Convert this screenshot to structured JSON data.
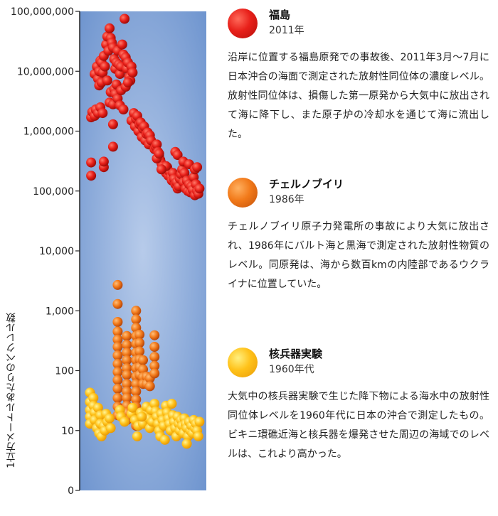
{
  "chart_data": {
    "type": "scatter",
    "ylabel": "1立方メートルあたりのベクレル数",
    "yscale": "log",
    "y_ticks": [
      "100,000,000",
      "10,000,000",
      "1,000,000",
      "100,000",
      "10,000",
      "1,000",
      "100",
      "10",
      "0"
    ],
    "series": [
      {
        "name": "福島",
        "year": "2011年",
        "color": "#e8201a",
        "description": "沿岸に位置する福島原発での事故後、2011年3月〜7月に日本沖合の海面で測定された放射性同位体の濃度レベル。放射性同位体は、損傷した第一原発から大気中に放出されて海に降下し、また原子炉の冷却水を通じて海に流出した。",
        "points": [
          [
            0.05,
            1700000
          ],
          [
            0.06,
            2100000
          ],
          [
            0.08,
            1800000
          ],
          [
            0.09,
            2300000
          ],
          [
            0.11,
            2000000
          ],
          [
            0.13,
            2500000
          ],
          [
            0.15,
            2000000
          ],
          [
            0.05,
            180000
          ],
          [
            0.05,
            300000
          ],
          [
            0.16,
            250000
          ],
          [
            0.16,
            310000
          ],
          [
            0.08,
            9000000
          ],
          [
            0.1,
            12000000
          ],
          [
            0.11,
            7500000
          ],
          [
            0.12,
            10000000
          ],
          [
            0.13,
            15000000
          ],
          [
            0.14,
            14000000
          ],
          [
            0.15,
            9500000
          ],
          [
            0.16,
            18000000
          ],
          [
            0.17,
            12000000
          ],
          [
            0.18,
            28000000
          ],
          [
            0.19,
            38000000
          ],
          [
            0.2,
            22000000
          ],
          [
            0.21,
            52000000
          ],
          [
            0.22,
            36000000
          ],
          [
            0.23,
            30000000
          ],
          [
            0.24,
            25000000
          ],
          [
            0.25,
            16000000
          ],
          [
            0.26,
            11000000
          ],
          [
            0.27,
            14000000
          ],
          [
            0.28,
            22000000
          ],
          [
            0.29,
            13000000
          ],
          [
            0.3,
            9000000
          ],
          [
            0.31,
            12000000
          ],
          [
            0.32,
            28000000
          ],
          [
            0.33,
            19000000
          ],
          [
            0.34,
            75000000
          ],
          [
            0.35,
            17000000
          ],
          [
            0.36,
            11000000
          ],
          [
            0.37,
            14000000
          ],
          [
            0.38,
            8000000
          ],
          [
            0.39,
            7000000
          ],
          [
            0.4,
            12000000
          ],
          [
            0.41,
            9500000
          ],
          [
            0.12,
            5800000
          ],
          [
            0.14,
            6500000
          ],
          [
            0.19,
            7000000
          ],
          [
            0.21,
            3000000
          ],
          [
            0.22,
            4500000
          ],
          [
            0.24,
            2800000
          ],
          [
            0.25,
            5000000
          ],
          [
            0.26,
            4200000
          ],
          [
            0.27,
            6000000
          ],
          [
            0.28,
            3500000
          ],
          [
            0.3,
            2700000
          ],
          [
            0.31,
            4800000
          ],
          [
            0.33,
            2300000
          ],
          [
            0.35,
            5500000
          ],
          [
            0.37,
            6500000
          ],
          [
            0.24,
            1300000
          ],
          [
            0.24,
            550000
          ],
          [
            0.4,
            1500000
          ],
          [
            0.42,
            2000000
          ],
          [
            0.43,
            1200000
          ],
          [
            0.44,
            1600000
          ],
          [
            0.45,
            1800000
          ],
          [
            0.46,
            1000000
          ],
          [
            0.47,
            1300000
          ],
          [
            0.48,
            1400000
          ],
          [
            0.49,
            800000
          ],
          [
            0.5,
            1100000
          ],
          [
            0.51,
            1200000
          ],
          [
            0.52,
            700000
          ],
          [
            0.53,
            900000
          ],
          [
            0.54,
            950000
          ],
          [
            0.55,
            600000
          ],
          [
            0.56,
            850000
          ],
          [
            0.57,
            700000
          ],
          [
            0.6,
            500000
          ],
          [
            0.61,
            550000
          ],
          [
            0.62,
            600000
          ],
          [
            0.63,
            450000
          ],
          [
            0.64,
            380000
          ],
          [
            0.65,
            330000
          ],
          [
            0.66,
            290000
          ],
          [
            0.67,
            260000
          ],
          [
            0.68,
            230000
          ],
          [
            0.69,
            220000
          ],
          [
            0.7,
            200000
          ],
          [
            0.71,
            250000
          ],
          [
            0.72,
            180000
          ],
          [
            0.73,
            210000
          ],
          [
            0.74,
            170000
          ],
          [
            0.75,
            150000
          ],
          [
            0.76,
            200000
          ],
          [
            0.77,
            160000
          ],
          [
            0.78,
            130000
          ],
          [
            0.79,
            140000
          ],
          [
            0.8,
            110000
          ],
          [
            0.81,
            120000
          ],
          [
            0.82,
            160000
          ],
          [
            0.83,
            190000
          ],
          [
            0.84,
            230000
          ],
          [
            0.85,
            140000
          ],
          [
            0.86,
            200000
          ],
          [
            0.87,
            110000
          ],
          [
            0.88,
            150000
          ],
          [
            0.89,
            100000
          ],
          [
            0.9,
            130000
          ],
          [
            0.91,
            95000
          ],
          [
            0.92,
            120000
          ],
          [
            0.93,
            105000
          ],
          [
            0.94,
            170000
          ],
          [
            0.95,
            85000
          ],
          [
            0.96,
            130000
          ],
          [
            0.97,
            100000
          ],
          [
            0.98,
            90000
          ],
          [
            0.99,
            110000
          ],
          [
            0.62,
            350000
          ],
          [
            0.64,
            420000
          ],
          [
            0.78,
            450000
          ],
          [
            0.8,
            400000
          ],
          [
            0.85,
            310000
          ],
          [
            0.7,
            260000
          ],
          [
            0.66,
            230000
          ],
          [
            0.9,
            280000
          ],
          [
            0.95,
            230000
          ],
          [
            0.97,
            250000
          ]
        ]
      },
      {
        "name": "チェルノブイリ",
        "year": "1986年",
        "color": "#f27a1a",
        "description": "チェルノブイリ原子力発電所の事故により大気に放出され、1986年にバルト海と黒海で測定された放射性物質のレベル。同原発は、海から数百kmの内陸部であるウクライナに位置していた。",
        "points": [
          [
            0.28,
            2700
          ],
          [
            0.28,
            1300
          ],
          [
            0.28,
            650
          ],
          [
            0.28,
            450
          ],
          [
            0.28,
            330
          ],
          [
            0.28,
            250
          ],
          [
            0.28,
            180
          ],
          [
            0.28,
            130
          ],
          [
            0.28,
            95
          ],
          [
            0.28,
            70
          ],
          [
            0.28,
            50
          ],
          [
            0.28,
            35
          ],
          [
            0.28,
            25
          ],
          [
            0.28,
            18
          ],
          [
            0.36,
            380
          ],
          [
            0.36,
            270
          ],
          [
            0.36,
            200
          ],
          [
            0.36,
            150
          ],
          [
            0.36,
            110
          ],
          [
            0.36,
            85
          ],
          [
            0.36,
            60
          ],
          [
            0.36,
            45
          ],
          [
            0.36,
            35
          ],
          [
            0.36,
            26
          ],
          [
            0.36,
            20
          ],
          [
            0.36,
            15
          ],
          [
            0.44,
            1000
          ],
          [
            0.44,
            720
          ],
          [
            0.44,
            520
          ],
          [
            0.44,
            380
          ],
          [
            0.44,
            280
          ],
          [
            0.44,
            200
          ],
          [
            0.44,
            150
          ],
          [
            0.44,
            110
          ],
          [
            0.44,
            80
          ],
          [
            0.44,
            60
          ],
          [
            0.44,
            45
          ],
          [
            0.44,
            33
          ],
          [
            0.44,
            25
          ],
          [
            0.44,
            20
          ],
          [
            0.44,
            15
          ],
          [
            0.44,
            12
          ],
          [
            0.47,
            400
          ],
          [
            0.47,
            290
          ],
          [
            0.47,
            210
          ],
          [
            0.47,
            155
          ],
          [
            0.47,
            115
          ],
          [
            0.47,
            85
          ],
          [
            0.5,
            150
          ],
          [
            0.5,
            105
          ],
          [
            0.5,
            78
          ],
          [
            0.5,
            60
          ],
          [
            0.53,
            80
          ],
          [
            0.53,
            60
          ],
          [
            0.56,
            75
          ],
          [
            0.56,
            55
          ],
          [
            0.6,
            390
          ],
          [
            0.6,
            250
          ],
          [
            0.6,
            170
          ],
          [
            0.6,
            120
          ],
          [
            0.6,
            90
          ]
        ]
      },
      {
        "name": "核兵器実験",
        "year": "1960年代",
        "color": "#ffc21a",
        "description": "大気中の核兵器実験で生じた降下物による海水中の放射性同位体レベルを1960年代に日本の沖合で測定したもの。ビキニ環礁近海と核兵器を爆発させた周辺の海域でのレベルは、これより高かった。",
        "points": [
          [
            0.04,
            43
          ],
          [
            0.04,
            30
          ],
          [
            0.04,
            22
          ],
          [
            0.04,
            17
          ],
          [
            0.04,
            13
          ],
          [
            0.07,
            35
          ],
          [
            0.07,
            26
          ],
          [
            0.08,
            20
          ],
          [
            0.08,
            15
          ],
          [
            0.1,
            11
          ],
          [
            0.11,
            24
          ],
          [
            0.12,
            9
          ],
          [
            0.13,
            18
          ],
          [
            0.13,
            13
          ],
          [
            0.14,
            8
          ],
          [
            0.16,
            12
          ],
          [
            0.17,
            10
          ],
          [
            0.18,
            19
          ],
          [
            0.19,
            14
          ],
          [
            0.21,
            16
          ],
          [
            0.22,
            11
          ],
          [
            0.3,
            22
          ],
          [
            0.31,
            17
          ],
          [
            0.34,
            14
          ],
          [
            0.4,
            19
          ],
          [
            0.41,
            24
          ],
          [
            0.43,
            15
          ],
          [
            0.46,
            12
          ],
          [
            0.48,
            20
          ],
          [
            0.5,
            13
          ],
          [
            0.52,
            18
          ],
          [
            0.53,
            25
          ],
          [
            0.55,
            16
          ],
          [
            0.56,
            11
          ],
          [
            0.57,
            22
          ],
          [
            0.58,
            14
          ],
          [
            0.6,
            28
          ],
          [
            0.61,
            21
          ],
          [
            0.62,
            17
          ],
          [
            0.63,
            13
          ],
          [
            0.64,
            10
          ],
          [
            0.65,
            8
          ],
          [
            0.66,
            19
          ],
          [
            0.67,
            15
          ],
          [
            0.68,
            12
          ],
          [
            0.69,
            7
          ],
          [
            0.7,
            26
          ],
          [
            0.71,
            20
          ],
          [
            0.72,
            16
          ],
          [
            0.73,
            13
          ],
          [
            0.74,
            10
          ],
          [
            0.75,
            28
          ],
          [
            0.76,
            18
          ],
          [
            0.77,
            14
          ],
          [
            0.78,
            11
          ],
          [
            0.79,
            8
          ],
          [
            0.8,
            17
          ],
          [
            0.81,
            13
          ],
          [
            0.82,
            10
          ],
          [
            0.83,
            15
          ],
          [
            0.84,
            12
          ],
          [
            0.85,
            9
          ],
          [
            0.86,
            16
          ],
          [
            0.87,
            13
          ],
          [
            0.88,
            11
          ],
          [
            0.89,
            8
          ],
          [
            0.9,
            14
          ],
          [
            0.91,
            10
          ],
          [
            0.92,
            12
          ],
          [
            0.93,
            9
          ],
          [
            0.94,
            15
          ],
          [
            0.95,
            11
          ],
          [
            0.96,
            13
          ],
          [
            0.97,
            10
          ],
          [
            0.98,
            8
          ],
          [
            0.99,
            14
          ],
          [
            0.45,
            8
          ],
          [
            0.49,
            17
          ],
          [
            0.88,
            6
          ]
        ]
      }
    ]
  }
}
